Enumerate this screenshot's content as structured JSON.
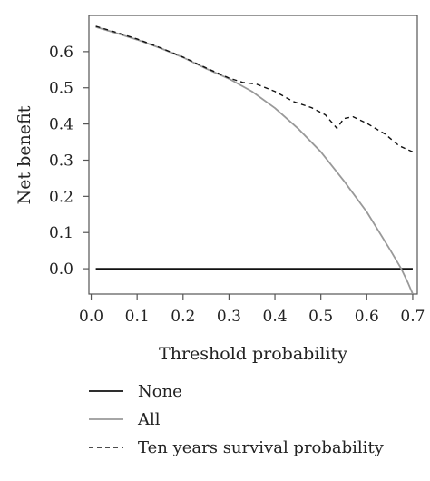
{
  "chart_data": {
    "type": "line",
    "xlabel": "Threshold probability",
    "ylabel": "Net benefit",
    "xlim": [
      -0.005,
      0.71
    ],
    "ylim": [
      -0.07,
      0.7
    ],
    "x_ticks": [
      0.0,
      0.1,
      0.2,
      0.3,
      0.4,
      0.5,
      0.6,
      0.7
    ],
    "x_tick_labels": [
      "0.0",
      "0.1",
      "0.2",
      "0.3",
      "0.4",
      "0.5",
      "0.6",
      "0.7"
    ],
    "y_ticks": [
      0.0,
      0.1,
      0.2,
      0.3,
      0.4,
      0.5,
      0.6
    ],
    "y_tick_labels": [
      "0.0",
      "0.1",
      "0.2",
      "0.3",
      "0.4",
      "0.5",
      "0.6"
    ],
    "grid": false,
    "legend_position": "bottom",
    "series": [
      {
        "name": "None",
        "style": "solid",
        "color": "#111111",
        "points": [
          [
            0.01,
            0.0
          ],
          [
            0.7,
            0.0
          ]
        ]
      },
      {
        "name": "All",
        "style": "solid",
        "color": "#999999",
        "points": [
          [
            0.01,
            0.668
          ],
          [
            0.05,
            0.653
          ],
          [
            0.1,
            0.633
          ],
          [
            0.15,
            0.61
          ],
          [
            0.2,
            0.584
          ],
          [
            0.25,
            0.553
          ],
          [
            0.3,
            0.525
          ],
          [
            0.35,
            0.49
          ],
          [
            0.4,
            0.444
          ],
          [
            0.45,
            0.388
          ],
          [
            0.5,
            0.323
          ],
          [
            0.55,
            0.243
          ],
          [
            0.6,
            0.157
          ],
          [
            0.65,
            0.054
          ],
          [
            0.675,
            0.0
          ],
          [
            0.69,
            -0.04
          ],
          [
            0.7,
            -0.07
          ]
        ]
      },
      {
        "name": "Ten years survival probability",
        "style": "dashed",
        "color": "#111111",
        "points": [
          [
            0.01,
            0.67
          ],
          [
            0.05,
            0.655
          ],
          [
            0.1,
            0.635
          ],
          [
            0.15,
            0.611
          ],
          [
            0.2,
            0.585
          ],
          [
            0.25,
            0.555
          ],
          [
            0.3,
            0.527
          ],
          [
            0.33,
            0.515
          ],
          [
            0.36,
            0.51
          ],
          [
            0.4,
            0.49
          ],
          [
            0.44,
            0.462
          ],
          [
            0.48,
            0.445
          ],
          [
            0.51,
            0.425
          ],
          [
            0.535,
            0.388
          ],
          [
            0.55,
            0.415
          ],
          [
            0.57,
            0.42
          ],
          [
            0.6,
            0.402
          ],
          [
            0.64,
            0.372
          ],
          [
            0.67,
            0.34
          ],
          [
            0.7,
            0.323
          ]
        ]
      }
    ]
  }
}
